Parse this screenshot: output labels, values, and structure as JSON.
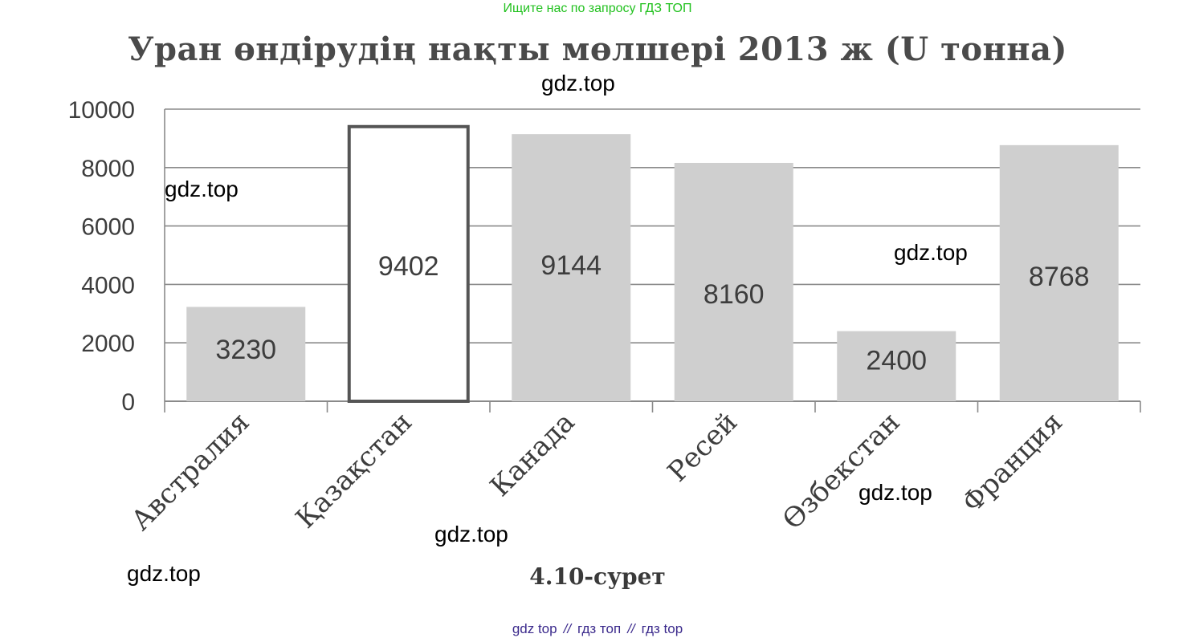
{
  "header": {
    "link_text": "Ищите нас по запросу ГДЗ ТОП"
  },
  "chart_data": {
    "type": "bar",
    "title": "Уран өндірудің нақты мөлшері 2013 ж (U тонна)",
    "categories": [
      "Австралия",
      "Қазақстан",
      "Канада",
      "Ресей",
      "Өзбекстан",
      "Франция"
    ],
    "values": [
      3230,
      9402,
      9144,
      8160,
      2400,
      8768
    ],
    "data_labels": [
      "3230",
      "9402",
      "9144",
      "8160",
      "2400",
      "8768"
    ],
    "highlight_index": 1,
    "ylim": [
      0,
      10000
    ],
    "yticks": [
      "0",
      "2000",
      "4000",
      "6000",
      "8000",
      "10000"
    ],
    "grid": true,
    "xlabel": "",
    "ylabel": "",
    "colors": {
      "bar": "#cfcfcf",
      "highlight_bar": "#ffffff",
      "highlight_outline": "#555555",
      "grid": "#8a8a8a"
    }
  },
  "caption": "4.10-сурет",
  "watermarks": [
    "gdz.top",
    "gdz.top",
    "gdz.top",
    "gdz.top",
    "gdz.top",
    "gdz.top"
  ],
  "footer": {
    "links": [
      "gdz top",
      "гдз топ",
      "гдз top"
    ],
    "separator": "//"
  }
}
